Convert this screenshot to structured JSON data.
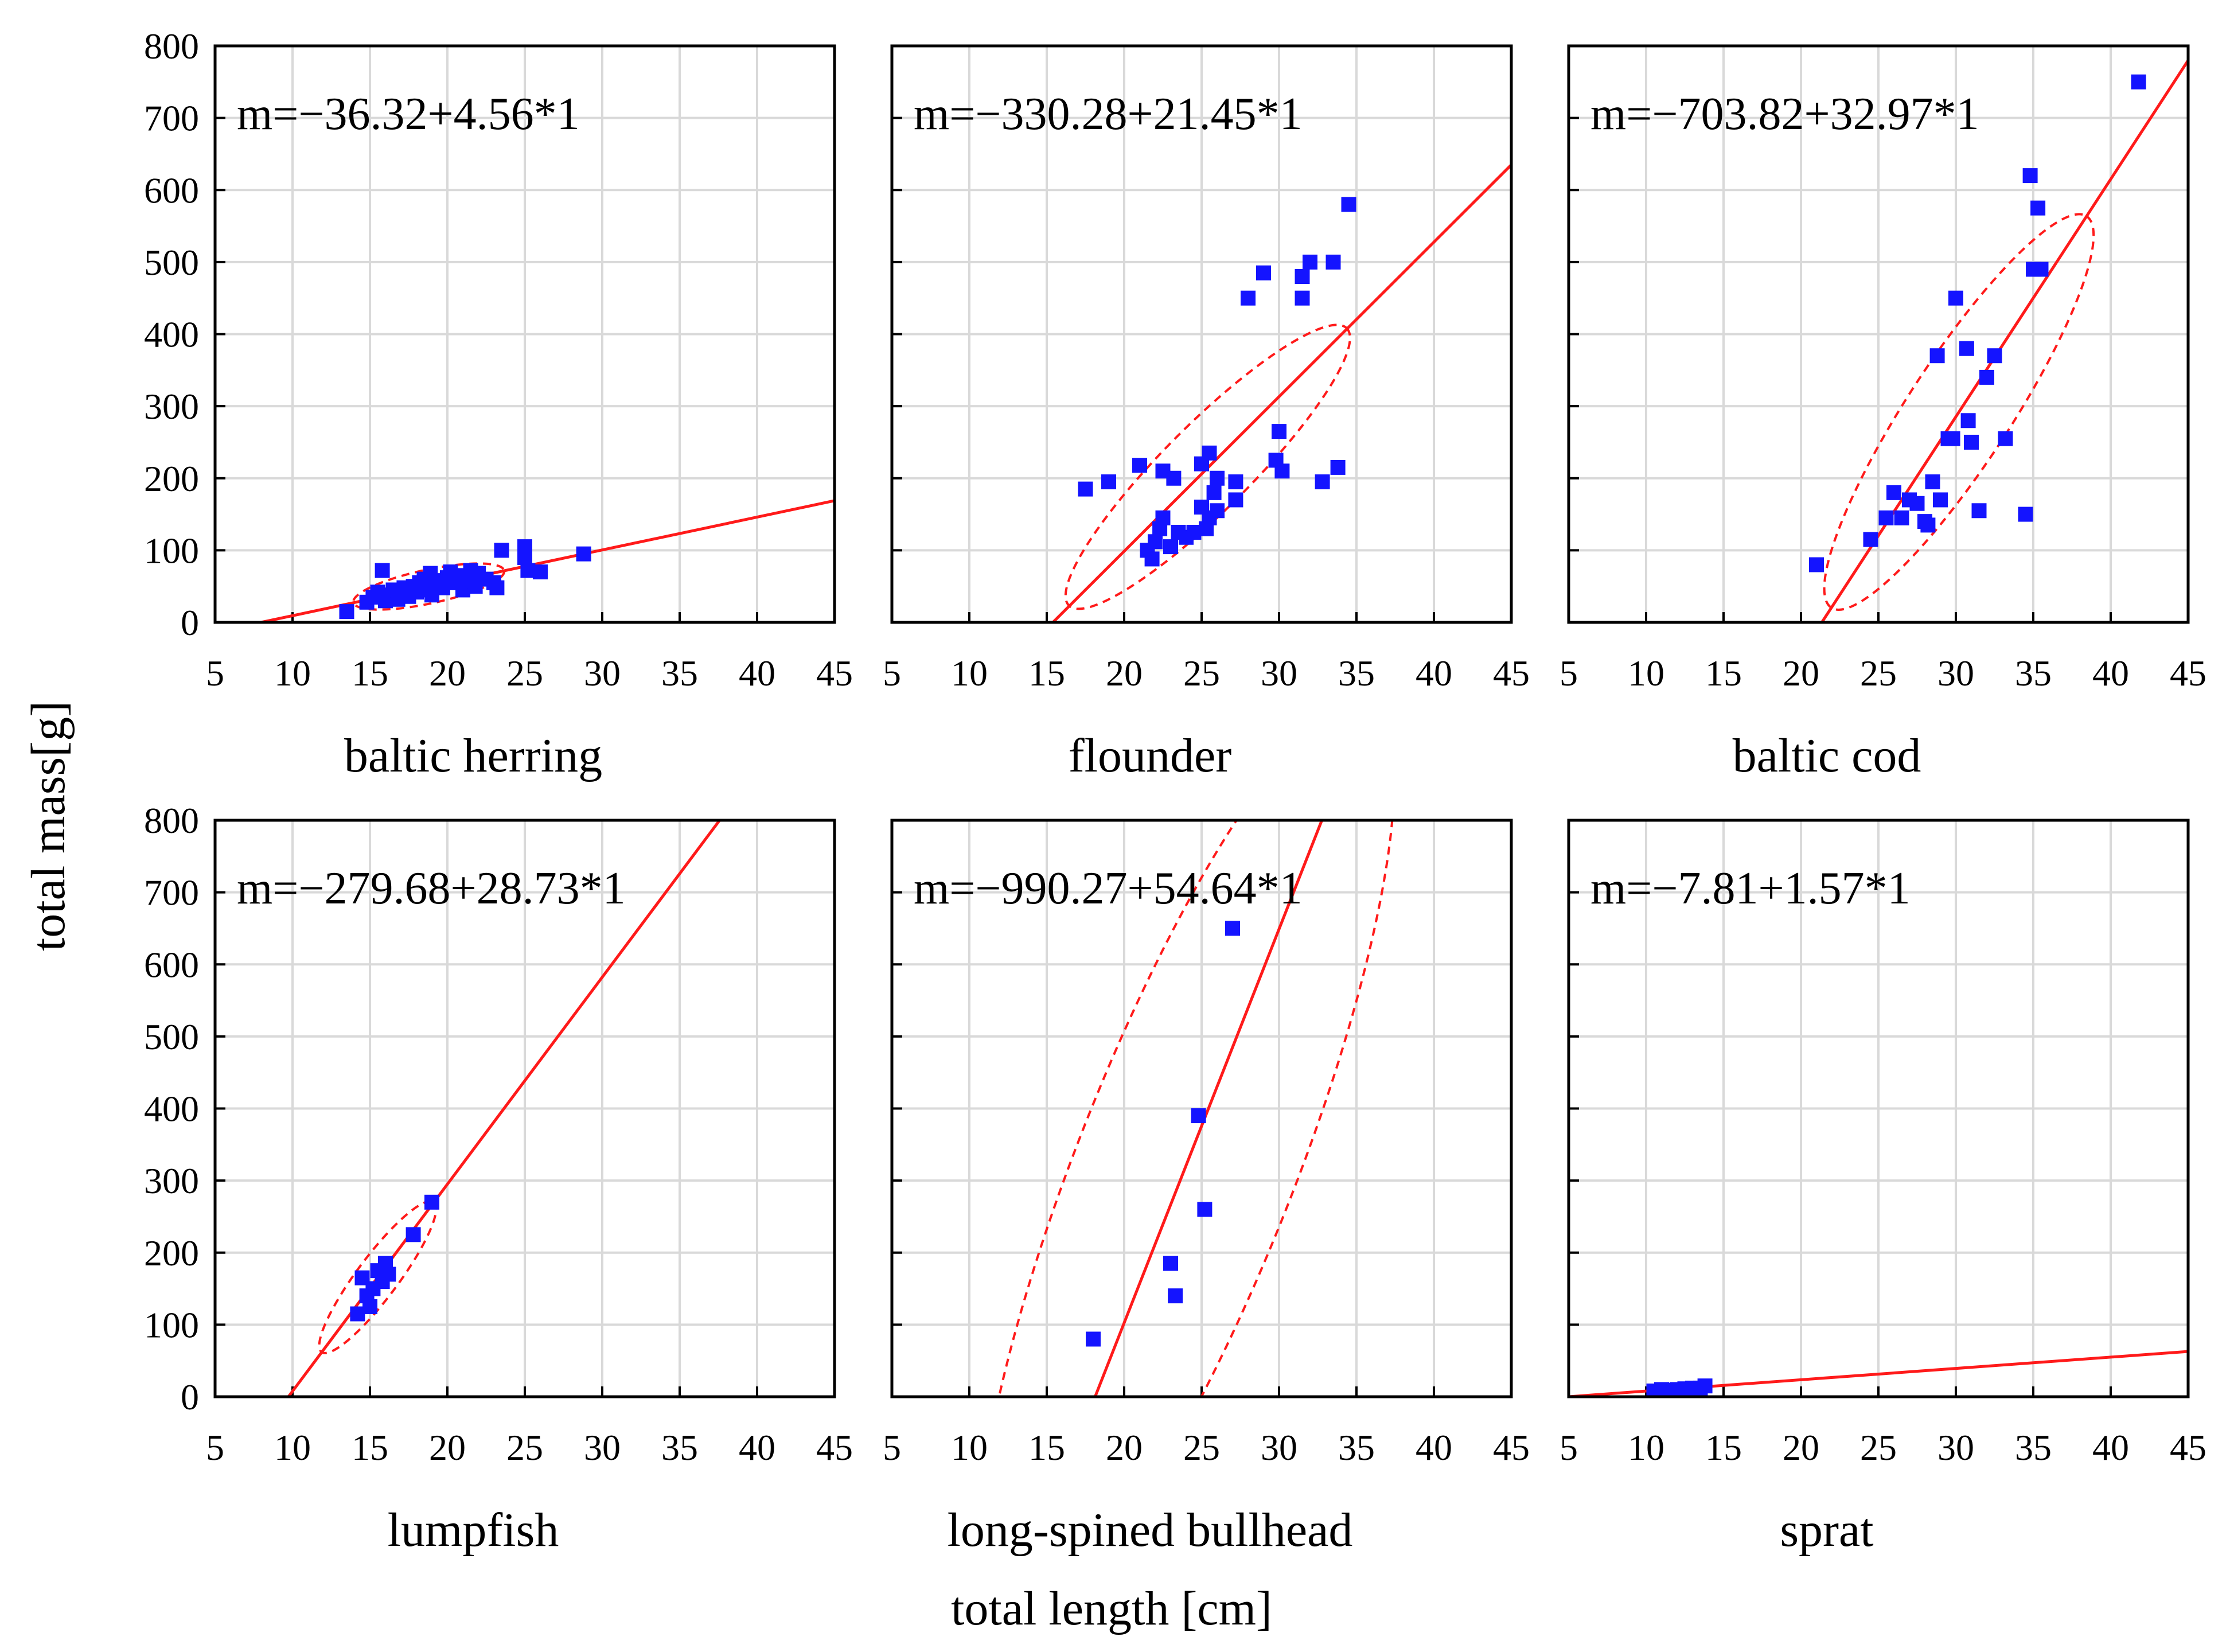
{
  "figure": {
    "ylabel": "total mass[g]",
    "xlabel": "total length [cm]"
  },
  "chart_data": [
    {
      "type": "scatter",
      "title": "baltic herring",
      "equation": "m=−36.32+4.56*1",
      "intercept": -36.32,
      "slope": 4.56,
      "xlim": [
        5,
        45
      ],
      "ylim": [
        0,
        800
      ],
      "xticks": [
        5,
        10,
        15,
        20,
        25,
        30,
        35,
        40,
        45
      ],
      "yticks": [
        0,
        100,
        200,
        300,
        400,
        500,
        600,
        700,
        800
      ],
      "ellipse": {
        "center": [
          18.8,
          49.7
        ],
        "rx": 5.5,
        "ry": 6.5
      },
      "points": [
        [
          13.5,
          15
        ],
        [
          14.8,
          28
        ],
        [
          15.2,
          35
        ],
        [
          15.5,
          42
        ],
        [
          15.8,
          72
        ],
        [
          16,
          30
        ],
        [
          16.2,
          38
        ],
        [
          16.5,
          45
        ],
        [
          16.8,
          32
        ],
        [
          17,
          40
        ],
        [
          17.2,
          48
        ],
        [
          17.5,
          36
        ],
        [
          17.8,
          50
        ],
        [
          18,
          42
        ],
        [
          18.2,
          55
        ],
        [
          18.5,
          60
        ],
        [
          18.7,
          45
        ],
        [
          18.9,
          68
        ],
        [
          19,
          38
        ],
        [
          19.2,
          52
        ],
        [
          19.5,
          58
        ],
        [
          19.7,
          48
        ],
        [
          20,
          62
        ],
        [
          20.2,
          70
        ],
        [
          20.5,
          55
        ],
        [
          20.8,
          65
        ],
        [
          21,
          45
        ],
        [
          21.2,
          58
        ],
        [
          21.5,
          72
        ],
        [
          21.8,
          50
        ],
        [
          22,
          68
        ],
        [
          22.5,
          60
        ],
        [
          23,
          55
        ],
        [
          23.2,
          48
        ],
        [
          23.5,
          100
        ],
        [
          25,
          105
        ],
        [
          25,
          90
        ],
        [
          25.2,
          72
        ],
        [
          26,
          70
        ],
        [
          28.8,
          95
        ]
      ]
    },
    {
      "type": "scatter",
      "title": "flounder",
      "equation": "m=−330.28+21.45*1",
      "intercept": -330.28,
      "slope": 21.45,
      "xlim": [
        5,
        45
      ],
      "ylim": [
        0,
        800
      ],
      "xticks": [
        5,
        10,
        15,
        20,
        25,
        30,
        35,
        40,
        45
      ],
      "yticks": [
        0,
        100,
        200,
        300,
        400,
        500,
        600,
        700,
        800
      ],
      "ellipse": {
        "center": [
          25.4,
          215.8
        ],
        "rx": 12.5,
        "ry": 360
      },
      "points": [
        [
          17.5,
          185
        ],
        [
          19,
          195
        ],
        [
          21,
          218
        ],
        [
          21.5,
          100
        ],
        [
          21.8,
          88
        ],
        [
          22,
          112
        ],
        [
          22.3,
          130
        ],
        [
          22.5,
          145
        ],
        [
          22.5,
          210
        ],
        [
          23,
          105
        ],
        [
          23.2,
          200
        ],
        [
          23.5,
          125
        ],
        [
          24,
          118
        ],
        [
          24.5,
          125
        ],
        [
          25,
          160
        ],
        [
          25,
          220
        ],
        [
          25.3,
          130
        ],
        [
          25.5,
          235
        ],
        [
          25.5,
          145
        ],
        [
          25.8,
          180
        ],
        [
          26,
          200
        ],
        [
          26,
          155
        ],
        [
          27.2,
          170
        ],
        [
          27.2,
          195
        ],
        [
          28,
          450
        ],
        [
          29,
          485
        ],
        [
          29.8,
          225
        ],
        [
          30,
          265
        ],
        [
          30.2,
          210
        ],
        [
          31.5,
          450
        ],
        [
          31.5,
          480
        ],
        [
          32,
          500
        ],
        [
          32.8,
          195
        ],
        [
          33.5,
          500
        ],
        [
          33.8,
          215
        ],
        [
          34.5,
          580
        ]
      ]
    },
    {
      "type": "scatter",
      "title": "baltic cod",
      "equation": "m=−703.82+32.97*1",
      "intercept": -703.82,
      "slope": 32.97,
      "xlim": [
        5,
        45
      ],
      "ylim": [
        0,
        800
      ],
      "xticks": [
        5,
        10,
        15,
        20,
        25,
        30,
        35,
        40,
        45
      ],
      "yticks": [
        0,
        100,
        200,
        300,
        400,
        500,
        600,
        700,
        800
      ],
      "ellipse": {
        "center": [
          30.2,
          292
        ],
        "rx": 11,
        "ry": 500
      },
      "points": [
        [
          21,
          80
        ],
        [
          24.5,
          115
        ],
        [
          25.5,
          145
        ],
        [
          26,
          180
        ],
        [
          26.5,
          145
        ],
        [
          27,
          170
        ],
        [
          27.5,
          165
        ],
        [
          28,
          140
        ],
        [
          28.2,
          135
        ],
        [
          28.5,
          195
        ],
        [
          28.8,
          370
        ],
        [
          29,
          170
        ],
        [
          29.5,
          255
        ],
        [
          29.8,
          255
        ],
        [
          30,
          450
        ],
        [
          30.7,
          380
        ],
        [
          30.8,
          280
        ],
        [
          31,
          250
        ],
        [
          31.5,
          155
        ],
        [
          32,
          340
        ],
        [
          32.5,
          370
        ],
        [
          33.2,
          255
        ],
        [
          34.5,
          150
        ],
        [
          34.8,
          620
        ],
        [
          35,
          490
        ],
        [
          35.3,
          575
        ],
        [
          35.5,
          490
        ],
        [
          41.8,
          750
        ]
      ]
    },
    {
      "type": "scatter",
      "title": "lumpfish",
      "equation": "m=−279.68+28.73*1",
      "intercept": -279.68,
      "slope": 28.73,
      "xlim": [
        5,
        45
      ],
      "ylim": [
        0,
        800
      ],
      "xticks": [
        5,
        10,
        15,
        20,
        25,
        30,
        35,
        40,
        45
      ],
      "yticks": [
        0,
        100,
        200,
        300,
        400,
        500,
        600,
        700,
        800
      ],
      "ellipse": {
        "center": [
          15.5,
          166
        ],
        "rx": 4,
        "ry": 140
      },
      "points": [
        [
          14.2,
          115
        ],
        [
          14.5,
          165
        ],
        [
          14.8,
          140
        ],
        [
          15,
          125
        ],
        [
          15.2,
          150
        ],
        [
          15.5,
          175
        ],
        [
          15.8,
          160
        ],
        [
          16,
          185
        ],
        [
          16.2,
          170
        ],
        [
          17.8,
          225
        ],
        [
          19,
          270
        ]
      ]
    },
    {
      "type": "scatter",
      "title": "long-spined bullhead",
      "equation": "m=−990.27+54.64*1",
      "intercept": -990.27,
      "slope": 54.64,
      "xlim": [
        5,
        45
      ],
      "ylim": [
        0,
        800
      ],
      "xticks": [
        5,
        10,
        15,
        20,
        25,
        30,
        35,
        40,
        45
      ],
      "yticks": [
        0,
        100,
        200,
        300,
        400,
        500,
        600,
        700,
        800
      ],
      "ellipse": {
        "center": [
          24,
          321
        ],
        "rx": 13,
        "ry": 1250
      },
      "points": [
        [
          18,
          80
        ],
        [
          23,
          185
        ],
        [
          23.3,
          140
        ],
        [
          24.8,
          390
        ],
        [
          25.2,
          260
        ],
        [
          27,
          650
        ]
      ]
    },
    {
      "type": "scatter",
      "title": "sprat",
      "equation": "m=−7.81+1.57*1",
      "intercept": -7.81,
      "slope": 1.57,
      "xlim": [
        5,
        45
      ],
      "ylim": [
        0,
        800
      ],
      "xticks": [
        5,
        10,
        15,
        20,
        25,
        30,
        35,
        40,
        45
      ],
      "yticks": [
        0,
        100,
        200,
        300,
        400,
        500,
        600,
        700,
        800
      ],
      "ellipse": null,
      "points": [
        [
          10.5,
          8
        ],
        [
          11,
          10
        ],
        [
          11.5,
          9
        ],
        [
          12,
          10
        ],
        [
          12.5,
          11
        ],
        [
          13,
          12
        ],
        [
          13.5,
          12
        ],
        [
          13.8,
          15
        ]
      ]
    }
  ]
}
